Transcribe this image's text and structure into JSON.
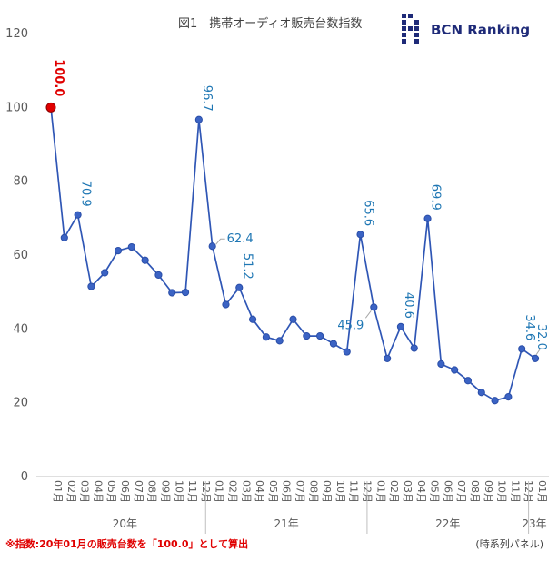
{
  "header": {
    "title": "図1　携帯オーディオ販売台数指数",
    "brand": "BCN Ranking"
  },
  "footer": {
    "note": "※指数:20年01月の販売台数を「100.0」として算出",
    "series_type": "(時系列パネル)"
  },
  "colors": {
    "line": "#2f56b5",
    "marker": "#3b63c4",
    "label": "#1f77b4",
    "highlight": "#e00000",
    "axis_text": "#595959",
    "brand": "#1e2a78"
  },
  "chart_data": {
    "type": "line",
    "title": "図1　携帯オーディオ販売台数指数",
    "xlabel": "",
    "ylabel": "",
    "ylim": [
      0,
      120
    ],
    "yticks": [
      0,
      20,
      40,
      60,
      80,
      100,
      120
    ],
    "grid": false,
    "month_labels": [
      "01月",
      "02月",
      "03月",
      "04月",
      "05月",
      "06月",
      "07月",
      "08月",
      "09月",
      "10月",
      "11月",
      "12月",
      "01月",
      "02月",
      "03月",
      "04月",
      "05月",
      "06月",
      "07月",
      "08月",
      "09月",
      "10月",
      "11月",
      "12月",
      "01月",
      "02月",
      "03月",
      "04月",
      "05月",
      "06月",
      "07月",
      "08月",
      "09月",
      "10月",
      "11月",
      "12月",
      "01月"
    ],
    "year_groups": [
      {
        "label": "20年",
        "count": 12
      },
      {
        "label": "21年",
        "count": 12
      },
      {
        "label": "22年",
        "count": 12
      },
      {
        "label": "23年",
        "count": 1
      }
    ],
    "series": [
      {
        "values": [
          100.0,
          64.7,
          70.9,
          51.5,
          55.2,
          61.2,
          62.2,
          58.6,
          54.6,
          49.8,
          49.9,
          96.7,
          62.4,
          46.6,
          51.2,
          42.6,
          37.8,
          36.8,
          42.6,
          38.1,
          38.1,
          36.0,
          33.8,
          65.6,
          45.9,
          32.0,
          40.6,
          34.8,
          69.9,
          30.5,
          28.9,
          26.0,
          22.8,
          20.6,
          21.6,
          34.6,
          32.0
        ]
      }
    ],
    "data_labels": [
      {
        "index": 0,
        "text": "100.0",
        "highlight": true
      },
      {
        "index": 2,
        "text": "70.9"
      },
      {
        "index": 11,
        "text": "96.7"
      },
      {
        "index": 12,
        "text": "62.4",
        "side": "right",
        "leader": true
      },
      {
        "index": 14,
        "text": "51.2"
      },
      {
        "index": 23,
        "text": "65.6"
      },
      {
        "index": 24,
        "text": "45.9",
        "side": "below-left",
        "leader": true
      },
      {
        "index": 26,
        "text": "40.6"
      },
      {
        "index": 28,
        "text": "69.9"
      },
      {
        "index": 35,
        "text": "34.6"
      },
      {
        "index": 36,
        "text": "32.0",
        "leader": true
      }
    ]
  }
}
